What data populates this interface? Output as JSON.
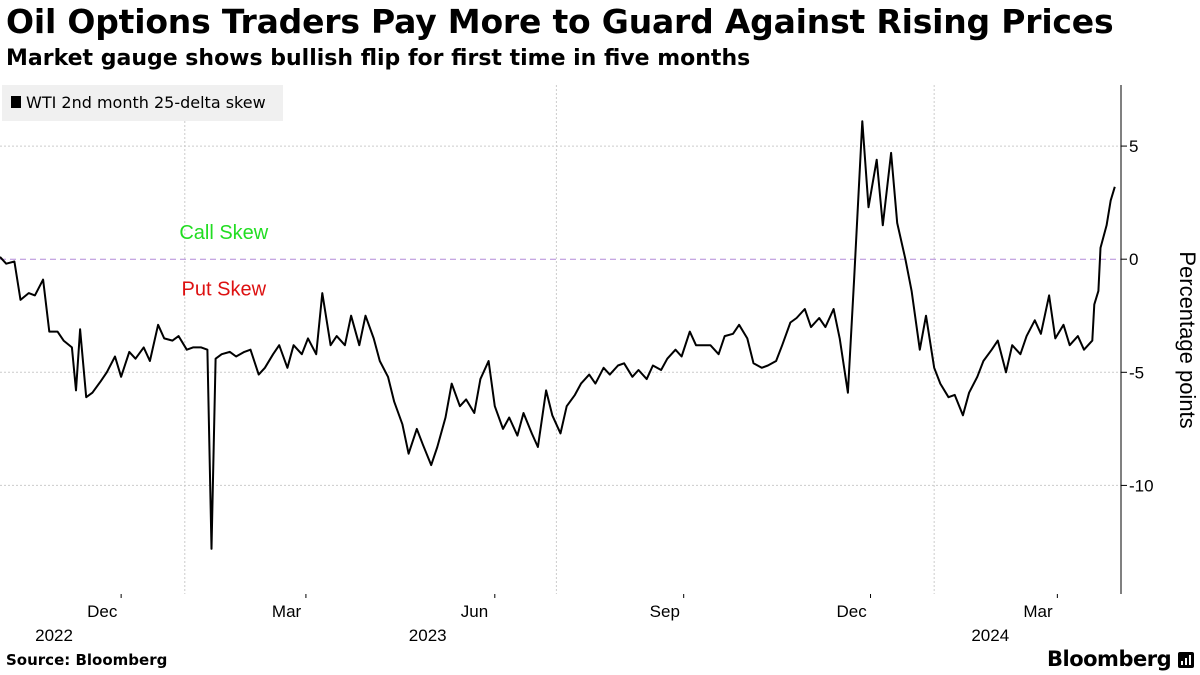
{
  "header": {
    "title": "Oil Options Traders Pay More to Guard Against Rising Prices",
    "subtitle": "Market gauge shows bullish flip for first time in five months"
  },
  "legend": {
    "label": "WTI 2nd month 25-delta skew"
  },
  "footer": {
    "source": "Source: Bloomberg",
    "brand": "Bloomberg"
  },
  "colors": {
    "line": "#000000",
    "grid": "#cccccc",
    "zero_line": "#b48ad8",
    "call_skew": "#22dd22",
    "put_skew": "#dd1111"
  },
  "chart_data": {
    "type": "line",
    "title": "Oil Options Traders Pay More to Guard Against Rising Prices",
    "subtitle": "Market gauge shows bullish flip for first time in five months",
    "ylabel": "Percentage points",
    "xlabel": "",
    "ylim": [
      -14.8,
      7.7
    ],
    "yticks": [
      5,
      0,
      -5,
      -10
    ],
    "ytick_labels": [
      "5",
      "0",
      "-5",
      "-10"
    ],
    "x_range": [
      "2022-10-03",
      "2024-04-01"
    ],
    "x_ticks": [
      {
        "date": "2022-12-01",
        "label": "Dec",
        "year": "2022"
      },
      {
        "date": "2023-03-01",
        "label": "Mar",
        "year": ""
      },
      {
        "date": "2023-06-01",
        "label": "Jun",
        "year": "2023"
      },
      {
        "date": "2023-09-01",
        "label": "Sep",
        "year": ""
      },
      {
        "date": "2023-12-01",
        "label": "Dec",
        "year": ""
      },
      {
        "date": "2024-03-01",
        "label": "Mar",
        "year": "2024"
      }
    ],
    "gridlines": {
      "x": [
        "2023-01-01",
        "2023-07-01",
        "2024-01-01"
      ],
      "y": [
        5,
        -5,
        -10
      ]
    },
    "annotations": [
      {
        "text": "Call Skew",
        "color": "call_skew",
        "y": 1.2,
        "date": "2023-01-20"
      },
      {
        "text": "Put Skew",
        "color": "put_skew",
        "y": -1.3,
        "date": "2023-01-20"
      }
    ],
    "series": [
      {
        "name": "WTI 2nd month 25-delta skew",
        "points": [
          [
            "2022-10-03",
            0.1
          ],
          [
            "2022-10-06",
            -0.2
          ],
          [
            "2022-10-10",
            -0.1
          ],
          [
            "2022-10-13",
            -1.8
          ],
          [
            "2022-10-17",
            -1.5
          ],
          [
            "2022-10-20",
            -1.6
          ],
          [
            "2022-10-24",
            -0.9
          ],
          [
            "2022-10-27",
            -3.2
          ],
          [
            "2022-10-31",
            -3.2
          ],
          [
            "2022-11-03",
            -3.6
          ],
          [
            "2022-11-07",
            -3.9
          ],
          [
            "2022-11-09",
            -5.8
          ],
          [
            "2022-11-11",
            -3.1
          ],
          [
            "2022-11-14",
            -6.1
          ],
          [
            "2022-11-17",
            -5.9
          ],
          [
            "2022-11-21",
            -5.4
          ],
          [
            "2022-11-24",
            -5.0
          ],
          [
            "2022-11-28",
            -4.3
          ],
          [
            "2022-12-01",
            -5.2
          ],
          [
            "2022-12-05",
            -4.1
          ],
          [
            "2022-12-08",
            -4.4
          ],
          [
            "2022-12-12",
            -3.9
          ],
          [
            "2022-12-15",
            -4.5
          ],
          [
            "2022-12-19",
            -2.9
          ],
          [
            "2022-12-22",
            -3.5
          ],
          [
            "2022-12-26",
            -3.6
          ],
          [
            "2022-12-29",
            -3.4
          ],
          [
            "2023-01-02",
            -4.0
          ],
          [
            "2023-01-05",
            -3.9
          ],
          [
            "2023-01-09",
            -3.9
          ],
          [
            "2023-01-12",
            -4.0
          ],
          [
            "2023-01-14",
            -12.8
          ],
          [
            "2023-01-16",
            -4.4
          ],
          [
            "2023-01-19",
            -4.2
          ],
          [
            "2023-01-23",
            -4.1
          ],
          [
            "2023-01-26",
            -4.3
          ],
          [
            "2023-01-30",
            -4.1
          ],
          [
            "2023-02-02",
            -4.0
          ],
          [
            "2023-02-06",
            -5.1
          ],
          [
            "2023-02-09",
            -4.8
          ],
          [
            "2023-02-13",
            -4.2
          ],
          [
            "2023-02-16",
            -3.8
          ],
          [
            "2023-02-20",
            -4.8
          ],
          [
            "2023-02-23",
            -3.8
          ],
          [
            "2023-02-27",
            -4.2
          ],
          [
            "2023-03-02",
            -3.5
          ],
          [
            "2023-03-06",
            -4.2
          ],
          [
            "2023-03-09",
            -1.5
          ],
          [
            "2023-03-13",
            -3.8
          ],
          [
            "2023-03-16",
            -3.4
          ],
          [
            "2023-03-20",
            -3.8
          ],
          [
            "2023-03-23",
            -2.5
          ],
          [
            "2023-03-27",
            -3.8
          ],
          [
            "2023-03-30",
            -2.5
          ],
          [
            "2023-04-03",
            -3.5
          ],
          [
            "2023-04-06",
            -4.5
          ],
          [
            "2023-04-10",
            -5.2
          ],
          [
            "2023-04-13",
            -6.3
          ],
          [
            "2023-04-17",
            -7.3
          ],
          [
            "2023-04-20",
            -8.6
          ],
          [
            "2023-04-24",
            -7.5
          ],
          [
            "2023-04-27",
            -8.2
          ],
          [
            "2023-05-01",
            -9.1
          ],
          [
            "2023-05-04",
            -8.3
          ],
          [
            "2023-05-08",
            -7.0
          ],
          [
            "2023-05-11",
            -5.5
          ],
          [
            "2023-05-15",
            -6.5
          ],
          [
            "2023-05-18",
            -6.2
          ],
          [
            "2023-05-22",
            -6.8
          ],
          [
            "2023-05-25",
            -5.3
          ],
          [
            "2023-05-29",
            -4.5
          ],
          [
            "2023-06-01",
            -6.5
          ],
          [
            "2023-06-05",
            -7.5
          ],
          [
            "2023-06-08",
            -7.0
          ],
          [
            "2023-06-12",
            -7.8
          ],
          [
            "2023-06-15",
            -6.8
          ],
          [
            "2023-06-19",
            -7.7
          ],
          [
            "2023-06-22",
            -8.3
          ],
          [
            "2023-06-26",
            -5.8
          ],
          [
            "2023-06-29",
            -6.9
          ],
          [
            "2023-07-03",
            -7.7
          ],
          [
            "2023-07-06",
            -6.5
          ],
          [
            "2023-07-10",
            -6.0
          ],
          [
            "2023-07-13",
            -5.5
          ],
          [
            "2023-07-17",
            -5.1
          ],
          [
            "2023-07-20",
            -5.5
          ],
          [
            "2023-07-24",
            -4.8
          ],
          [
            "2023-07-27",
            -5.1
          ],
          [
            "2023-07-31",
            -4.7
          ],
          [
            "2023-08-03",
            -4.6
          ],
          [
            "2023-08-07",
            -5.2
          ],
          [
            "2023-08-10",
            -4.9
          ],
          [
            "2023-08-14",
            -5.3
          ],
          [
            "2023-08-17",
            -4.7
          ],
          [
            "2023-08-21",
            -4.9
          ],
          [
            "2023-08-24",
            -4.4
          ],
          [
            "2023-08-28",
            -4.0
          ],
          [
            "2023-08-31",
            -4.3
          ],
          [
            "2023-09-04",
            -3.2
          ],
          [
            "2023-09-07",
            -3.8
          ],
          [
            "2023-09-11",
            -3.8
          ],
          [
            "2023-09-14",
            -3.8
          ],
          [
            "2023-09-18",
            -4.2
          ],
          [
            "2023-09-21",
            -3.4
          ],
          [
            "2023-09-25",
            -3.3
          ],
          [
            "2023-09-28",
            -2.9
          ],
          [
            "2023-10-02",
            -3.5
          ],
          [
            "2023-10-05",
            -4.6
          ],
          [
            "2023-10-09",
            -4.8
          ],
          [
            "2023-10-12",
            -4.7
          ],
          [
            "2023-10-16",
            -4.5
          ],
          [
            "2023-10-19",
            -3.8
          ],
          [
            "2023-10-23",
            -2.8
          ],
          [
            "2023-10-26",
            -2.6
          ],
          [
            "2023-10-30",
            -2.2
          ],
          [
            "2023-11-02",
            -3.0
          ],
          [
            "2023-11-06",
            -2.6
          ],
          [
            "2023-11-09",
            -3.0
          ],
          [
            "2023-11-13",
            -2.2
          ],
          [
            "2023-11-16",
            -3.5
          ],
          [
            "2023-11-20",
            -5.9
          ],
          [
            "2023-11-23",
            -0.9
          ],
          [
            "2023-11-27",
            6.1
          ],
          [
            "2023-11-30",
            2.3
          ],
          [
            "2023-12-04",
            4.4
          ],
          [
            "2023-12-07",
            1.5
          ],
          [
            "2023-12-11",
            4.7
          ],
          [
            "2023-12-14",
            1.6
          ],
          [
            "2023-12-18",
            0.0
          ],
          [
            "2023-12-21",
            -1.4
          ],
          [
            "2023-12-25",
            -4.0
          ],
          [
            "2023-12-28",
            -2.5
          ],
          [
            "2024-01-01",
            -4.8
          ],
          [
            "2024-01-04",
            -5.5
          ],
          [
            "2024-01-08",
            -6.1
          ],
          [
            "2024-01-11",
            -6.0
          ],
          [
            "2024-01-15",
            -6.9
          ],
          [
            "2024-01-18",
            -5.9
          ],
          [
            "2024-01-22",
            -5.2
          ],
          [
            "2024-01-25",
            -4.5
          ],
          [
            "2024-01-29",
            -4.0
          ],
          [
            "2024-02-01",
            -3.6
          ],
          [
            "2024-02-05",
            -5.0
          ],
          [
            "2024-02-08",
            -3.8
          ],
          [
            "2024-02-12",
            -4.2
          ],
          [
            "2024-02-15",
            -3.4
          ],
          [
            "2024-02-19",
            -2.7
          ],
          [
            "2024-02-22",
            -3.3
          ],
          [
            "2024-02-26",
            -1.6
          ],
          [
            "2024-02-29",
            -3.5
          ],
          [
            "2024-03-04",
            -2.9
          ],
          [
            "2024-03-07",
            -3.8
          ],
          [
            "2024-03-11",
            -3.4
          ],
          [
            "2024-03-14",
            -4.0
          ],
          [
            "2024-03-18",
            -3.6
          ],
          [
            "2024-03-19",
            -2.0
          ],
          [
            "2024-03-21",
            -1.4
          ],
          [
            "2024-03-22",
            0.5
          ],
          [
            "2024-03-25",
            1.5
          ],
          [
            "2024-03-27",
            2.6
          ],
          [
            "2024-03-29",
            3.2
          ]
        ]
      }
    ]
  }
}
